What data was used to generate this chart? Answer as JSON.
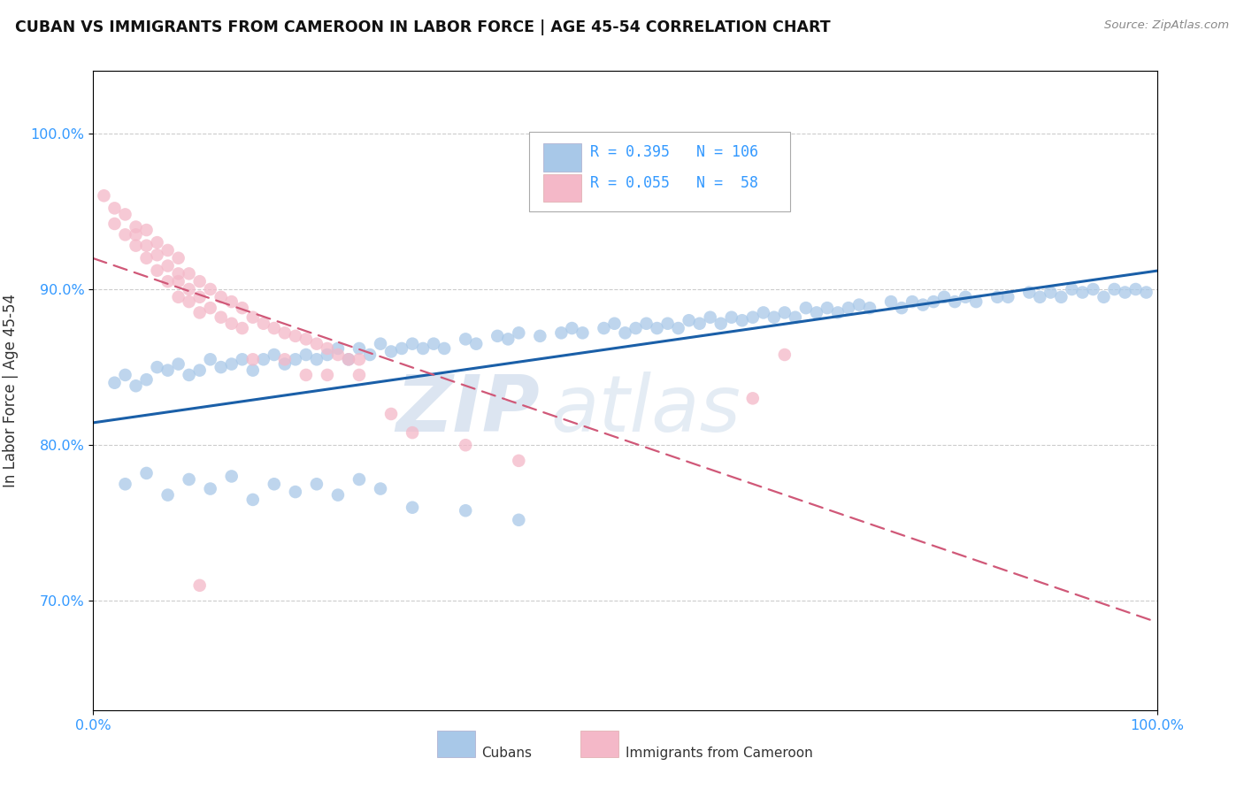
{
  "title": "CUBAN VS IMMIGRANTS FROM CAMEROON IN LABOR FORCE | AGE 45-54 CORRELATION CHART",
  "source": "Source: ZipAtlas.com",
  "ylabel": "In Labor Force | Age 45-54",
  "xlim": [
    0.0,
    1.0
  ],
  "ylim": [
    0.63,
    1.04
  ],
  "yticks": [
    0.7,
    0.8,
    0.9,
    1.0
  ],
  "ytick_labels": [
    "70.0%",
    "80.0%",
    "90.0%",
    "100.0%"
  ],
  "xticks": [
    0.0,
    1.0
  ],
  "xtick_labels": [
    "0.0%",
    "100.0%"
  ],
  "legend_R1": "0.395",
  "legend_N1": "106",
  "legend_R2": "0.055",
  "legend_N2": "58",
  "blue_color": "#a8c8e8",
  "pink_color": "#f4b8c8",
  "line_blue": "#1a5fa8",
  "line_pink": "#d05878",
  "watermark_zip": "ZIP",
  "watermark_atlas": "atlas",
  "blue_scatter_x": [
    0.02,
    0.03,
    0.04,
    0.05,
    0.06,
    0.07,
    0.08,
    0.09,
    0.1,
    0.11,
    0.12,
    0.13,
    0.14,
    0.15,
    0.16,
    0.17,
    0.18,
    0.19,
    0.2,
    0.21,
    0.22,
    0.23,
    0.24,
    0.25,
    0.26,
    0.27,
    0.28,
    0.29,
    0.3,
    0.31,
    0.32,
    0.33,
    0.35,
    0.36,
    0.38,
    0.39,
    0.4,
    0.42,
    0.44,
    0.45,
    0.46,
    0.48,
    0.49,
    0.5,
    0.51,
    0.52,
    0.53,
    0.54,
    0.55,
    0.56,
    0.57,
    0.58,
    0.59,
    0.6,
    0.61,
    0.62,
    0.63,
    0.64,
    0.65,
    0.66,
    0.67,
    0.68,
    0.69,
    0.7,
    0.71,
    0.72,
    0.73,
    0.75,
    0.76,
    0.77,
    0.78,
    0.79,
    0.8,
    0.81,
    0.82,
    0.83,
    0.85,
    0.86,
    0.88,
    0.89,
    0.9,
    0.91,
    0.92,
    0.93,
    0.94,
    0.95,
    0.96,
    0.97,
    0.98,
    0.99,
    0.03,
    0.05,
    0.07,
    0.09,
    0.11,
    0.13,
    0.15,
    0.17,
    0.19,
    0.21,
    0.23,
    0.25,
    0.27,
    0.3,
    0.35,
    0.4
  ],
  "blue_scatter_y": [
    0.84,
    0.845,
    0.838,
    0.842,
    0.85,
    0.848,
    0.852,
    0.845,
    0.848,
    0.855,
    0.85,
    0.852,
    0.855,
    0.848,
    0.855,
    0.858,
    0.852,
    0.855,
    0.858,
    0.855,
    0.858,
    0.862,
    0.855,
    0.862,
    0.858,
    0.865,
    0.86,
    0.862,
    0.865,
    0.862,
    0.865,
    0.862,
    0.868,
    0.865,
    0.87,
    0.868,
    0.872,
    0.87,
    0.872,
    0.875,
    0.872,
    0.875,
    0.878,
    0.872,
    0.875,
    0.878,
    0.875,
    0.878,
    0.875,
    0.88,
    0.878,
    0.882,
    0.878,
    0.882,
    0.88,
    0.882,
    0.885,
    0.882,
    0.885,
    0.882,
    0.888,
    0.885,
    0.888,
    0.885,
    0.888,
    0.89,
    0.888,
    0.892,
    0.888,
    0.892,
    0.89,
    0.892,
    0.895,
    0.892,
    0.895,
    0.892,
    0.895,
    0.895,
    0.898,
    0.895,
    0.898,
    0.895,
    0.9,
    0.898,
    0.9,
    0.895,
    0.9,
    0.898,
    0.9,
    0.898,
    0.775,
    0.782,
    0.768,
    0.778,
    0.772,
    0.78,
    0.765,
    0.775,
    0.77,
    0.775,
    0.768,
    0.778,
    0.772,
    0.76,
    0.758,
    0.752
  ],
  "pink_scatter_x": [
    0.01,
    0.02,
    0.02,
    0.03,
    0.03,
    0.04,
    0.04,
    0.04,
    0.05,
    0.05,
    0.05,
    0.06,
    0.06,
    0.06,
    0.07,
    0.07,
    0.07,
    0.08,
    0.08,
    0.08,
    0.08,
    0.09,
    0.09,
    0.09,
    0.1,
    0.1,
    0.1,
    0.11,
    0.11,
    0.12,
    0.12,
    0.13,
    0.13,
    0.14,
    0.14,
    0.15,
    0.16,
    0.17,
    0.18,
    0.19,
    0.2,
    0.21,
    0.22,
    0.23,
    0.24,
    0.25,
    0.15,
    0.2,
    0.25,
    0.3,
    0.22,
    0.28,
    0.18,
    0.35,
    0.4,
    0.62,
    0.65,
    0.1
  ],
  "pink_scatter_y": [
    0.96,
    0.952,
    0.942,
    0.948,
    0.935,
    0.94,
    0.928,
    0.935,
    0.938,
    0.928,
    0.92,
    0.93,
    0.922,
    0.912,
    0.925,
    0.915,
    0.905,
    0.92,
    0.91,
    0.905,
    0.895,
    0.91,
    0.9,
    0.892,
    0.905,
    0.895,
    0.885,
    0.9,
    0.888,
    0.895,
    0.882,
    0.892,
    0.878,
    0.888,
    0.875,
    0.882,
    0.878,
    0.875,
    0.872,
    0.87,
    0.868,
    0.865,
    0.862,
    0.858,
    0.855,
    0.855,
    0.855,
    0.845,
    0.845,
    0.808,
    0.845,
    0.82,
    0.855,
    0.8,
    0.79,
    0.83,
    0.858,
    0.71
  ]
}
